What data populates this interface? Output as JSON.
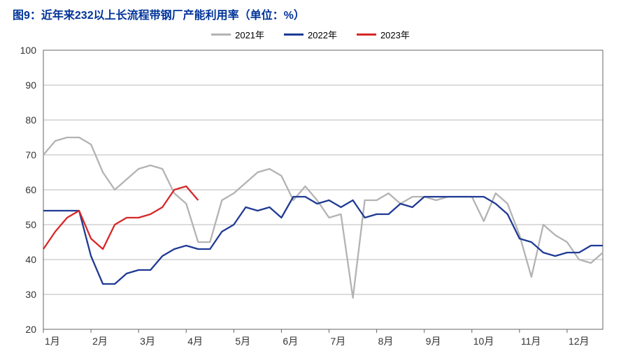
{
  "title": "图9：近年来232以上长流程带钢厂产能利用率（单位：%）",
  "title_color": "#003399",
  "title_fontsize": 16,
  "legend": {
    "items": [
      {
        "label": "2021年",
        "color": "#b3b3b3"
      },
      {
        "label": "2022年",
        "color": "#1f3a93"
      },
      {
        "label": "2023年",
        "color": "#d62728"
      }
    ]
  },
  "chart": {
    "type": "line",
    "background_color": "#ffffff",
    "grid_color": "#b8b8b8",
    "border_color": "#666666",
    "ylim": [
      20,
      100
    ],
    "ytick_step": 10,
    "x_categories": [
      "1月",
      "2月",
      "3月",
      "4月",
      "5月",
      "6月",
      "7月",
      "8月",
      "9月",
      "10月",
      "11月",
      "12月"
    ],
    "points_per_month": 4,
    "line_width": 2.3,
    "series": [
      {
        "name": "2021年",
        "color": "#b3b3b3",
        "values": [
          70,
          74,
          75,
          75,
          73,
          65,
          60,
          63,
          66,
          67,
          66,
          59,
          56,
          45,
          45,
          57,
          59,
          62,
          65,
          66,
          64,
          57,
          61,
          57,
          52,
          53,
          29,
          57,
          57,
          59,
          56,
          58,
          58,
          57,
          58,
          58,
          58,
          51,
          59,
          56,
          47,
          35,
          50,
          47,
          45,
          40,
          39,
          42
        ]
      },
      {
        "name": "2022年",
        "color": "#1f3a93",
        "values": [
          54,
          54,
          54,
          54,
          41,
          33,
          33,
          36,
          37,
          37,
          41,
          43,
          44,
          43,
          43,
          48,
          50,
          55,
          54,
          55,
          52,
          58,
          58,
          56,
          57,
          55,
          57,
          52,
          53,
          53,
          56,
          55,
          58,
          58,
          58,
          58,
          58,
          58,
          56,
          53,
          46,
          45,
          42,
          41,
          42,
          42,
          44,
          44
        ]
      },
      {
        "name": "2023年",
        "color": "#d62728",
        "values": [
          43,
          48,
          52,
          54,
          46,
          43,
          50,
          52,
          52,
          53,
          55,
          60,
          61,
          57
        ]
      }
    ]
  }
}
